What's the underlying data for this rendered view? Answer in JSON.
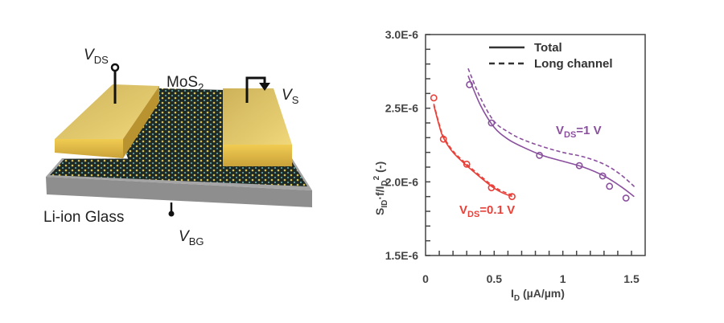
{
  "diagram": {
    "vds_label": {
      "main": "V",
      "sub": "DS"
    },
    "mos2_label": {
      "main": "MoS",
      "sub": "2"
    },
    "vs_label": {
      "main": "V",
      "sub": "S"
    },
    "glass_label": "Li-ion Glass",
    "vbg_label": {
      "main": "V",
      "sub": "BG"
    },
    "colors": {
      "gold": "#e2c05a",
      "glass": "#9a9a9a",
      "mos2": "#1f2a26"
    }
  },
  "chart_data": {
    "type": "line",
    "title": "",
    "xlabel": {
      "main": "I",
      "sub": "D",
      "rest": " (µA/µm)"
    },
    "ylabel": {
      "a": "S",
      "a_sub": "ID",
      "b": "·f/I",
      "b_sub": "D",
      "b_sup": "2",
      "c": " (-)"
    },
    "xlim": [
      0,
      1.6
    ],
    "ylim": [
      1.5e-06,
      3e-06
    ],
    "xticks": [
      0,
      0.5,
      1,
      1.5
    ],
    "xtick_labels": [
      "0",
      "0.5",
      "1",
      "1.5"
    ],
    "yticks": [
      1.5e-06,
      2e-06,
      2.5e-06,
      3e-06
    ],
    "ytick_labels": [
      "1.5E-6",
      "2.0E-6",
      "2.5E-6",
      "3.0E-6"
    ],
    "legend": {
      "placement": "top-right",
      "entries": [
        {
          "label": "Total",
          "style": "solid"
        },
        {
          "label": "Long channel",
          "style": "dashed"
        }
      ]
    },
    "series": [
      {
        "name": "VDS=0.1 V",
        "color": "#e8413a",
        "annotation": {
          "main": "V",
          "sub": "DS",
          "rest": "=0.1 V"
        },
        "points": {
          "x": [
            0.06,
            0.13,
            0.3,
            0.48,
            0.63
          ],
          "y": [
            2.57e-06,
            2.29e-06,
            2.12e-06,
            1.96e-06,
            1.9e-06
          ]
        },
        "total": {
          "x": [
            0.06,
            0.1,
            0.13,
            0.2,
            0.3,
            0.4,
            0.48,
            0.55,
            0.63
          ],
          "y": [
            2.52e-06,
            2.38e-06,
            2.3e-06,
            2.2e-06,
            2.11e-06,
            2.03e-06,
            1.97e-06,
            1.93e-06,
            1.9e-06
          ]
        },
        "long_channel": {
          "x": [
            0.06,
            0.1,
            0.13,
            0.2,
            0.3,
            0.4,
            0.48,
            0.55,
            0.63
          ],
          "y": [
            2.53e-06,
            2.39e-06,
            2.31e-06,
            2.21e-06,
            2.12e-06,
            2.04e-06,
            1.98e-06,
            1.94e-06,
            1.91e-06
          ]
        }
      },
      {
        "name": "VDS=1 V",
        "color": "#8a4f9e",
        "annotation": {
          "main": "V",
          "sub": "DS",
          "rest": "=1 V"
        },
        "points": {
          "x": [
            0.32,
            0.48,
            0.83,
            1.12,
            1.29,
            1.34,
            1.46
          ],
          "y": [
            2.66e-06,
            2.4e-06,
            2.18e-06,
            2.11e-06,
            2.04e-06,
            1.97e-06,
            1.89e-06
          ]
        },
        "total": {
          "x": [
            0.31,
            0.4,
            0.5,
            0.6,
            0.7,
            0.85,
            1.0,
            1.15,
            1.3,
            1.42,
            1.52
          ],
          "y": [
            2.72e-06,
            2.52e-06,
            2.37e-06,
            2.29e-06,
            2.24e-06,
            2.18e-06,
            2.14e-06,
            2.1e-06,
            2.04e-06,
            1.97e-06,
            1.9e-06
          ]
        },
        "long_channel": {
          "x": [
            0.31,
            0.4,
            0.5,
            0.6,
            0.7,
            0.85,
            1.0,
            1.15,
            1.3,
            1.42,
            1.53
          ],
          "y": [
            2.77e-06,
            2.57e-06,
            2.41e-06,
            2.34e-06,
            2.29e-06,
            2.24e-06,
            2.2e-06,
            2.17e-06,
            2.12e-06,
            2.05e-06,
            1.96e-06
          ]
        }
      }
    ]
  }
}
